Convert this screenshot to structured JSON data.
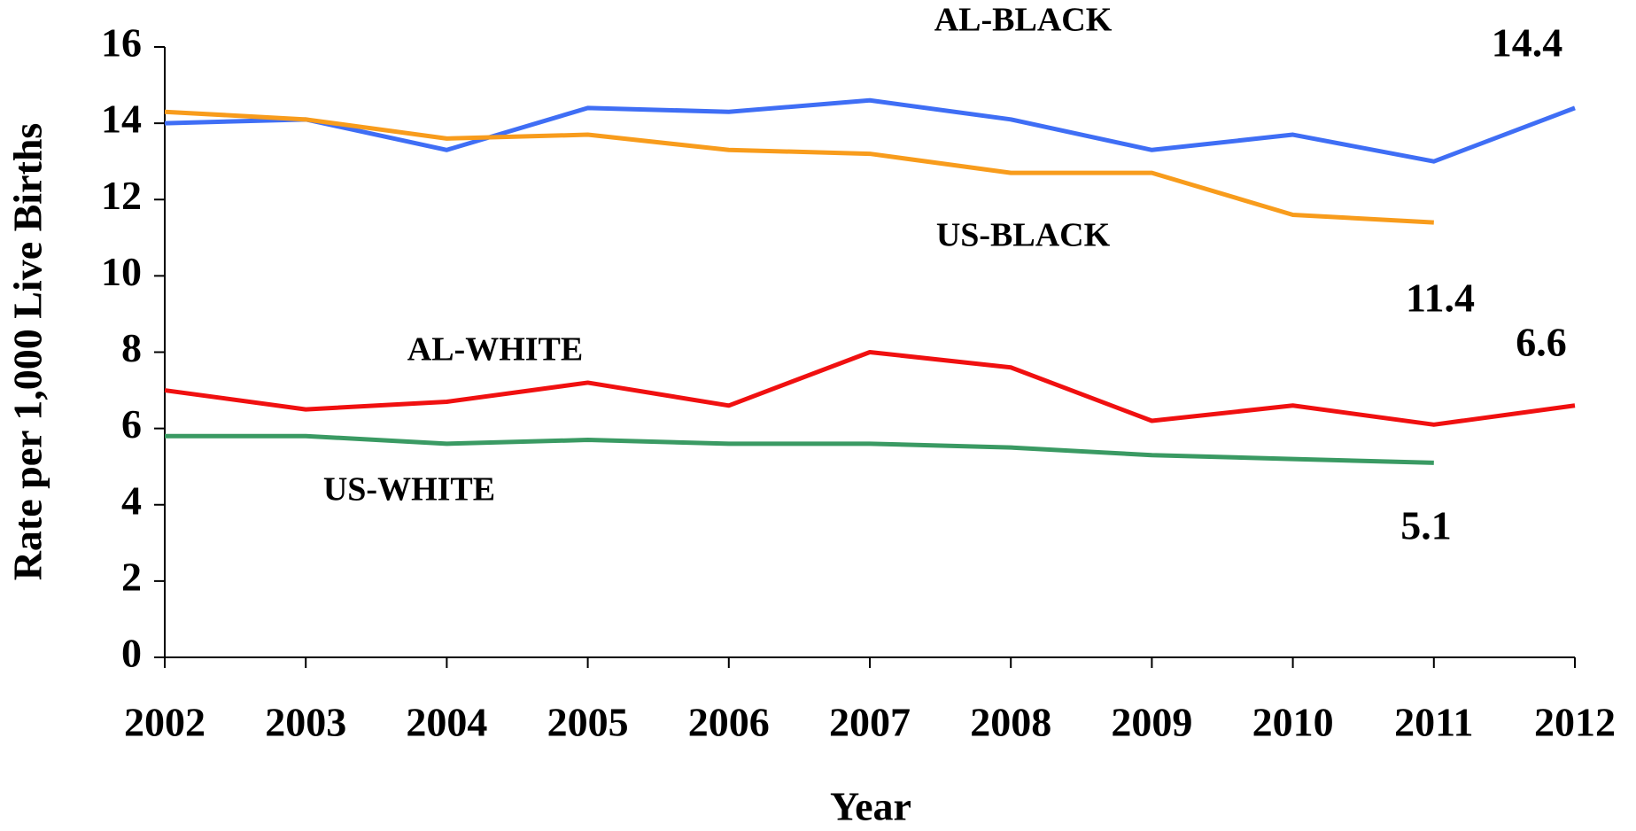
{
  "chart_data": {
    "type": "line",
    "x": [
      2002,
      2003,
      2004,
      2005,
      2006,
      2007,
      2008,
      2009,
      2010,
      2011,
      2012
    ],
    "xlim": [
      2002,
      2012
    ],
    "xticks": [
      2002,
      2003,
      2004,
      2005,
      2006,
      2007,
      2008,
      2009,
      2010,
      2011,
      2012
    ],
    "ylim": [
      0,
      16
    ],
    "yticks": [
      0,
      2,
      4,
      6,
      8,
      10,
      12,
      14,
      16
    ],
    "x_label": "Year",
    "y_label": "Rate per 1,000 Live Births",
    "grid": false,
    "series": [
      {
        "name": "AL-BLACK",
        "color": "#3f6ef5",
        "values": [
          14.0,
          14.1,
          13.3,
          14.4,
          14.3,
          14.6,
          14.1,
          13.3,
          13.7,
          13.0,
          14.4
        ]
      },
      {
        "name": "US-BLACK",
        "color": "#f89c1c",
        "values": [
          14.3,
          14.1,
          13.6,
          13.7,
          13.3,
          13.2,
          12.7,
          12.7,
          11.6,
          11.4,
          null
        ]
      },
      {
        "name": "AL-WHITE",
        "color": "#f01010",
        "values": [
          7.0,
          6.5,
          6.7,
          7.2,
          6.6,
          8.0,
          7.6,
          6.2,
          6.6,
          6.1,
          6.6
        ]
      },
      {
        "name": "US-WHITE",
        "color": "#3a9a63",
        "values": [
          5.8,
          5.8,
          5.6,
          5.7,
          5.6,
          5.6,
          5.5,
          5.3,
          5.2,
          5.1,
          null
        ]
      }
    ],
    "annotations": [
      "14.4",
      "11.4",
      "6.6",
      "5.1"
    ]
  }
}
